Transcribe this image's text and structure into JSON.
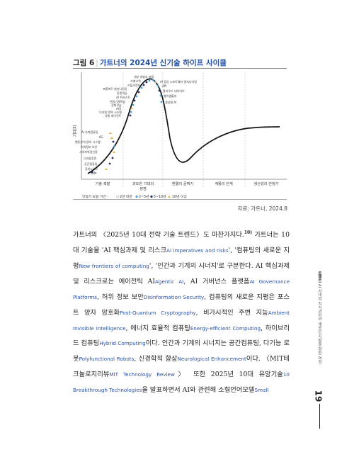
{
  "figure": {
    "label": "그림 6",
    "title": "가트너의 2024년 신기술 하이프 사이클"
  },
  "chart_data": {
    "type": "line",
    "title": "가트너의 2024년 신기술 하이프 사이클",
    "ylabel": "기대치",
    "phases": [
      "기술 촉발",
      "과도한 기대의 정점",
      "환멸의 골짜기",
      "계몽의 단계",
      "생산성의 안정기"
    ],
    "legend_title": "안정기 도달 기간 :",
    "legend": [
      {
        "symbol": "○",
        "label": "2년 미만",
        "color": "#bbbbbb"
      },
      {
        "symbol": "●",
        "label": "2~5년",
        "color": "#4aa3d6"
      },
      {
        "symbol": "●",
        "label": "5~10년",
        "color": "#1f2f6b"
      },
      {
        "symbol": "▲",
        "label": "10년 이상",
        "color": "#e3b23c"
      }
    ],
    "technologies_rising": [
      "AI 슈퍼컴퓨팅",
      "6G",
      "행동분석/관리 시스템",
      "허위정보 보안",
      "시야지위성인증",
      "디지털휴먼",
      "공간컴퓨팅",
      "휴머노이드",
      "LAM"
    ],
    "technologies_peak": [
      "내부 개발자 포털",
      "기계고객",
      "리플리컨트 에이전트",
      "AI 증강 소프트웨어 엔지니어링",
      "프롬프트 엔지니어링",
      "클라우드 네이티브",
      "동종학습",
      "웹어셈블리",
      "AI 트러스트",
      "생성형 AI",
      "엣지 AI",
      "연합기계학습",
      "강화학습",
      "AGI",
      "디지털 면역 시스템",
      "자율 에이전트"
    ]
  },
  "source": "자료: 가트너, 2024.8",
  "body": {
    "p1": "가트너의 〈2025년 10대 전략 기술 트렌드〉도 마찬가지다.",
    "fn": "10)",
    "p2": " 가트너는 10대 기술을 'AI 핵심과제 및 리스크",
    "e1": "AI imperatives and risks",
    "p3": "', '컴퓨팅의 새로운 지평",
    "e2": "New frontiers of computing",
    "p4": "', '인간과 기계의 시너지'로 구분한다. AI 핵심과제 및 리스크로는 에이전틱 AI",
    "e3": "Agentic AI",
    "p5": ", AI 거버넌스 플랫폼",
    "e4": "AI Governance Platforms",
    "p6": ", 허위 정보 보안",
    "e5": "Disinformation Security",
    "p7": ", 컴퓨팅의 새로운 지평은 포스트 양자 암호화",
    "e6": "Post-Quantum Cryptography",
    "p8": ", 비가시적인 주변 지능",
    "e7": "Ambient Invisible Intelligence",
    "p9": ", 에너지 효율적 컴퓨팅",
    "e8": "Energy-efficient Computing",
    "p10": ", 하이브리드 컴퓨팅",
    "e9": "Hybrid Computing",
    "p11": "이다. 인간과 기계의 시너지는 공간컴퓨팅, 다기능 로봇",
    "e10": "Polyfunctional Robots",
    "p12": ", 신경학적 향상",
    "e11": "Neurological Enhancement",
    "p13": "이다. 〈MIT테크놀로지리뷰",
    "e12": "MIT Technology Review",
    "p14": "〉 또한 2025년 10대 유망기술",
    "e13": "10 Breakthrough Technologies",
    "p15": "을 발표하면서 AI와 관련해 소형언어모델",
    "e14": "Small"
  },
  "sidebar": {
    "bold": "트렌드",
    "text": " AI 시대의 지식관리와 새로운 지평을 향한 여정"
  },
  "page_number": "19"
}
